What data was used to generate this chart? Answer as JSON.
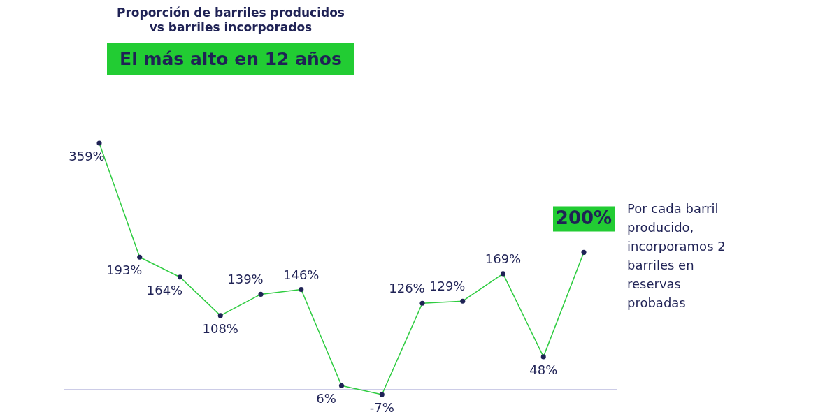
{
  "chart_data": {
    "type": "line",
    "title": "Proporción de barriles producidos vs barriles incorporados",
    "categories": [
      null,
      null,
      null,
      null,
      null,
      null,
      null,
      null,
      null,
      null,
      null,
      null,
      null
    ],
    "series": [
      {
        "color": "#2ecc40",
        "values": [
          359,
          193,
          164,
          108,
          139,
          146,
          6,
          -7,
          126,
          129,
          169,
          48,
          200
        ],
        "value_labels": [
          "359%",
          "193%",
          "164%",
          "108%",
          "139%",
          "146%",
          "6%",
          "-7%",
          "126%",
          "129%",
          "169%",
          "48%",
          "200%"
        ]
      }
    ],
    "marker": "circle",
    "ref_lines": [
      {
        "axis": "y",
        "value": 0,
        "color": "#9a9ad0"
      }
    ],
    "annotations": [
      "El más alto en 12 años",
      "Por cada barril producido, incorporamos 2 barriles en reservas probadas"
    ]
  }
}
